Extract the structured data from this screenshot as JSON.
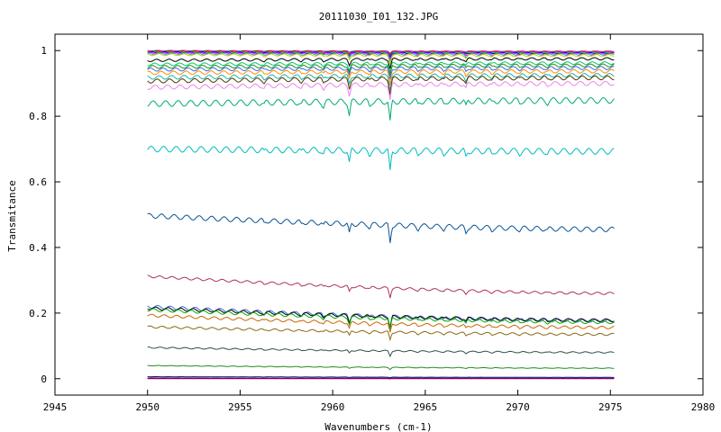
{
  "chart_data": {
    "type": "line",
    "title": "20111030_I01_132.JPG",
    "xlabel": "Wavenumbers (cm-1)",
    "ylabel": "Transmitance",
    "xlim": [
      2945,
      2980
    ],
    "ylim": [
      -0.05,
      1.05
    ],
    "xticks": [
      "2945",
      "2950",
      "2955",
      "2960",
      "2965",
      "2970",
      "2975",
      "2980"
    ],
    "yticks": [
      "0",
      "0.2",
      "0.4",
      "0.6",
      "0.8",
      "1"
    ],
    "grid": false,
    "legend": "none",
    "x_range": [
      2950,
      2975.2
    ],
    "absorption_lines": [
      {
        "x": 2956.3,
        "depth": 0.04
      },
      {
        "x": 2958.3,
        "depth": 0.04
      },
      {
        "x": 2959.5,
        "depth": 0.06
      },
      {
        "x": 2960.9,
        "depth": 0.18
      },
      {
        "x": 2962.0,
        "depth": 0.05
      },
      {
        "x": 2963.1,
        "depth": 0.3
      },
      {
        "x": 2964.6,
        "depth": 0.05
      },
      {
        "x": 2966.0,
        "depth": 0.04
      },
      {
        "x": 2967.2,
        "depth": 0.09
      },
      {
        "x": 2968.6,
        "depth": 0.04
      },
      {
        "x": 2970.1,
        "depth": 0.03
      },
      {
        "x": 2971.6,
        "depth": 0.03
      }
    ],
    "series": [
      {
        "color": "#8a2be2",
        "y_start": 1.0,
        "y_end": 0.998,
        "line_scale": 0.02
      },
      {
        "color": "#ff0000",
        "y_start": 0.998,
        "y_end": 0.996,
        "line_scale": 0.03
      },
      {
        "color": "#00aa00",
        "y_start": 0.996,
        "y_end": 0.994,
        "line_scale": 0.04
      },
      {
        "color": "#0000ff",
        "y_start": 0.994,
        "y_end": 0.992,
        "line_scale": 0.05
      },
      {
        "color": "#ff00ff",
        "y_start": 0.992,
        "y_end": 0.99,
        "line_scale": 0.06
      },
      {
        "color": "#00bfbf",
        "y_start": 0.99,
        "y_end": 0.988,
        "line_scale": 0.07
      },
      {
        "color": "#cccc00",
        "y_start": 0.988,
        "y_end": 0.985,
        "line_scale": 0.08
      },
      {
        "color": "#000000",
        "y_start": 0.97,
        "y_end": 0.975,
        "line_scale": 0.09
      },
      {
        "color": "#00cc66",
        "y_start": 0.958,
        "y_end": 0.962,
        "line_scale": 0.1
      },
      {
        "color": "#228b22",
        "y_start": 0.95,
        "y_end": 0.955,
        "line_scale": 0.11
      },
      {
        "color": "#4169e1",
        "y_start": 0.942,
        "y_end": 0.947,
        "line_scale": 0.12
      },
      {
        "color": "#ff8c00",
        "y_start": 0.932,
        "y_end": 0.937,
        "line_scale": 0.13
      },
      {
        "color": "#20b2aa",
        "y_start": 0.918,
        "y_end": 0.925,
        "line_scale": 0.14
      },
      {
        "color": "#4b3a00",
        "y_start": 0.907,
        "y_end": 0.917,
        "line_scale": 0.15
      },
      {
        "color": "#ee82ee",
        "y_start": 0.888,
        "y_end": 0.9,
        "line_scale": 0.16
      },
      {
        "color": "#00aa77",
        "y_start": 0.838,
        "y_end": 0.848,
        "line_scale": 0.22
      },
      {
        "color": "#00bcbc",
        "y_start": 0.7,
        "y_end": 0.693,
        "line_scale": 0.22
      },
      {
        "color": "#0b5394",
        "y_start": 0.497,
        "y_end": 0.455,
        "line_scale": 0.18
      },
      {
        "color": "#b03060",
        "y_start": 0.312,
        "y_end": 0.26,
        "line_scale": 0.09
      },
      {
        "color": "#4169e1",
        "y_start": 0.22,
        "y_end": 0.176,
        "line_scale": 0.12
      },
      {
        "color": "#000000",
        "y_start": 0.215,
        "y_end": 0.178,
        "line_scale": 0.11
      },
      {
        "color": "#00aa00",
        "y_start": 0.21,
        "y_end": 0.172,
        "line_scale": 0.11
      },
      {
        "color": "#cc6600",
        "y_start": 0.193,
        "y_end": 0.156,
        "line_scale": 0.1
      },
      {
        "color": "#8b6914",
        "y_start": 0.158,
        "y_end": 0.135,
        "line_scale": 0.08
      },
      {
        "color": "#2f4f4f",
        "y_start": 0.095,
        "y_end": 0.08,
        "line_scale": 0.05
      },
      {
        "color": "#228b22",
        "y_start": 0.04,
        "y_end": 0.032,
        "line_scale": 0.02
      },
      {
        "color": "#000080",
        "y_start": 0.006,
        "y_end": 0.004,
        "line_scale": 0.005
      },
      {
        "color": "#8b0000",
        "y_start": 0.002,
        "y_end": 0.001,
        "line_scale": 0.003
      },
      {
        "color": "#800080",
        "y_start": 0.0,
        "y_end": 0.0,
        "line_scale": 0.002
      }
    ]
  }
}
